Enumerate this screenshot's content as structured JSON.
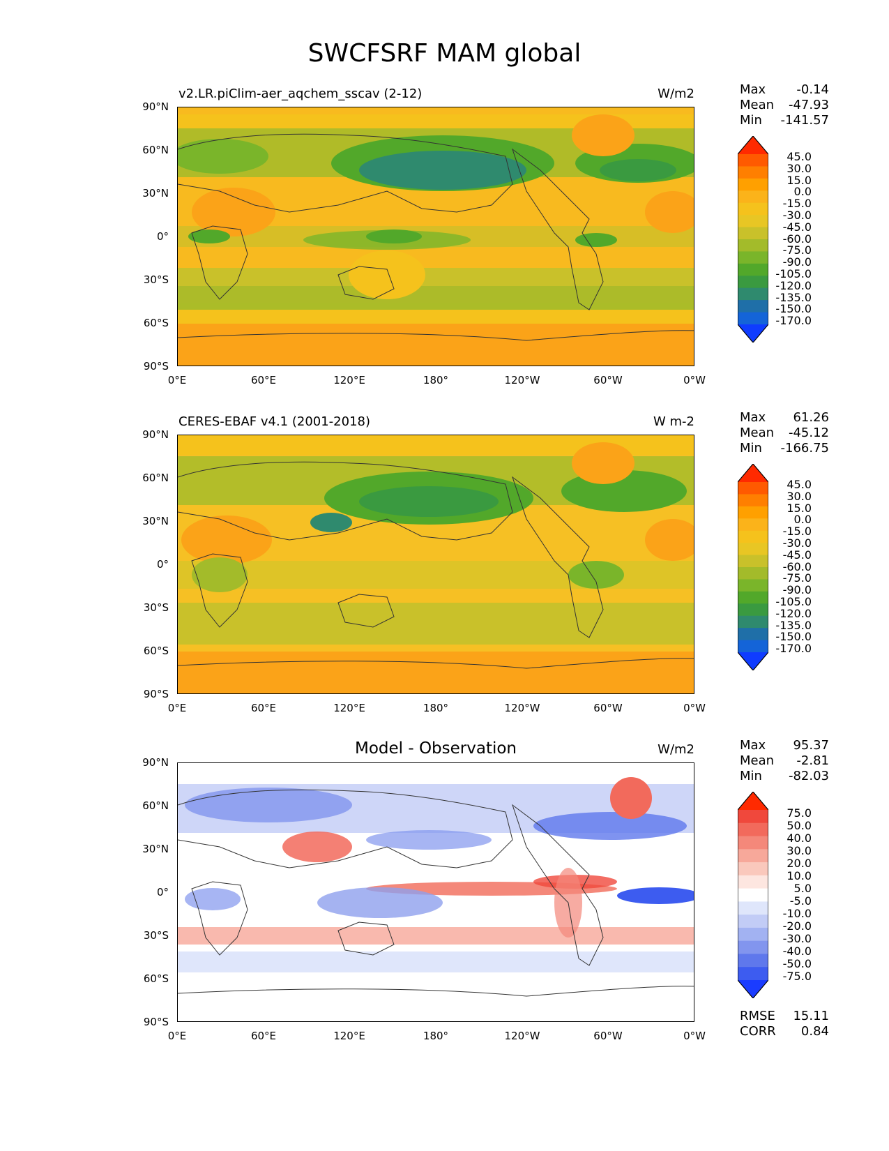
{
  "figure_title": "SWCFSRF MAM global",
  "panels": [
    {
      "left_title": "v2.LR.piClim-aer_aqchem_sscav (2-12)",
      "center_title": "",
      "units": "W/m2",
      "stats": {
        "max_label": "Max",
        "max": "-0.14",
        "mean_label": "Mean",
        "mean": "-47.93",
        "min_label": "Min",
        "min": "-141.57"
      },
      "colorbar": {
        "levels": [
          "45.0",
          "30.0",
          "15.0",
          "0.0",
          "-15.0",
          "-30.0",
          "-45.0",
          "-60.0",
          "-75.0",
          "-90.0",
          "-105.0",
          "-120.0",
          "-135.0",
          "-150.0",
          "-170.0"
        ],
        "colors": [
          "#ff2a00",
          "#ff5a00",
          "#ff7f00",
          "#ffa000",
          "#fbb31a",
          "#f5c21c",
          "#e8c624",
          "#c9c12a",
          "#a3bb2a",
          "#7ab52a",
          "#52a82a",
          "#3a9a40",
          "#2f8a6e",
          "#1f6fa8",
          "#1464d8",
          "#0f3cff"
        ]
      }
    },
    {
      "left_title": "CERES-EBAF v4.1 (2001-2018)",
      "center_title": "",
      "units": "W m-2",
      "stats": {
        "max_label": "Max",
        "max": "61.26",
        "mean_label": "Mean",
        "mean": "-45.12",
        "min_label": "Min",
        "min": "-166.75"
      },
      "colorbar": {
        "levels": [
          "45.0",
          "30.0",
          "15.0",
          "0.0",
          "-15.0",
          "-30.0",
          "-45.0",
          "-60.0",
          "-75.0",
          "-90.0",
          "-105.0",
          "-120.0",
          "-135.0",
          "-150.0",
          "-170.0"
        ],
        "colors": [
          "#ff2a00",
          "#ff5a00",
          "#ff7f00",
          "#ffa000",
          "#fbb31a",
          "#f5c21c",
          "#e8c624",
          "#c9c12a",
          "#a3bb2a",
          "#7ab52a",
          "#52a82a",
          "#3a9a40",
          "#2f8a6e",
          "#1f6fa8",
          "#1464d8",
          "#0f3cff"
        ]
      }
    },
    {
      "left_title": "",
      "center_title": "Model - Observation",
      "units": "W/m2",
      "stats": {
        "max_label": "Max",
        "max": "95.37",
        "mean_label": "Mean",
        "mean": "-2.81",
        "min_label": "Min",
        "min": "-82.03"
      },
      "extra": {
        "rmse_label": "RMSE",
        "rmse": "15.11",
        "corr_label": "CORR",
        "corr": "0.84"
      },
      "colorbar": {
        "levels": [
          "75.0",
          "50.0",
          "40.0",
          "30.0",
          "20.0",
          "10.0",
          "5.0",
          "-5.0",
          "-10.0",
          "-20.0",
          "-30.0",
          "-40.0",
          "-50.0",
          "-75.0"
        ],
        "colors": [
          "#ff2a00",
          "#f0483c",
          "#f26a5c",
          "#f4887a",
          "#f7a89a",
          "#fac8bc",
          "#fde6e0",
          "#ffffff",
          "#dfe6fb",
          "#c2ccf6",
          "#a2b2f2",
          "#8295ee",
          "#5f78ec",
          "#3d5cf0",
          "#1a3cff"
        ]
      }
    }
  ],
  "axes": {
    "y_ticks": [
      "90°N",
      "60°N",
      "30°N",
      "0°",
      "30°S",
      "60°S",
      "90°S"
    ],
    "x_ticks": [
      "0°E",
      "60°E",
      "120°E",
      "180°",
      "120°W",
      "60°W",
      "0°W"
    ]
  },
  "map_colors": {
    "panel1": {
      "base": "#f8ba1f",
      "south": "#fba318",
      "north_green": "#8dbb2b",
      "storm": "#2f8a6e",
      "itcz": "#a8c02a"
    },
    "panel2": {
      "base": "#f6c024",
      "south": "#fba318",
      "north_green": "#7ab52a",
      "storm": "#3a9a40",
      "itcz": "#c9c12a"
    },
    "panel3": {
      "base": "#ffffff",
      "blue": "#8ea0ee",
      "red": "#f4887a",
      "deep_blue": "#3d5cf0",
      "deep_red": "#f0483c"
    }
  }
}
